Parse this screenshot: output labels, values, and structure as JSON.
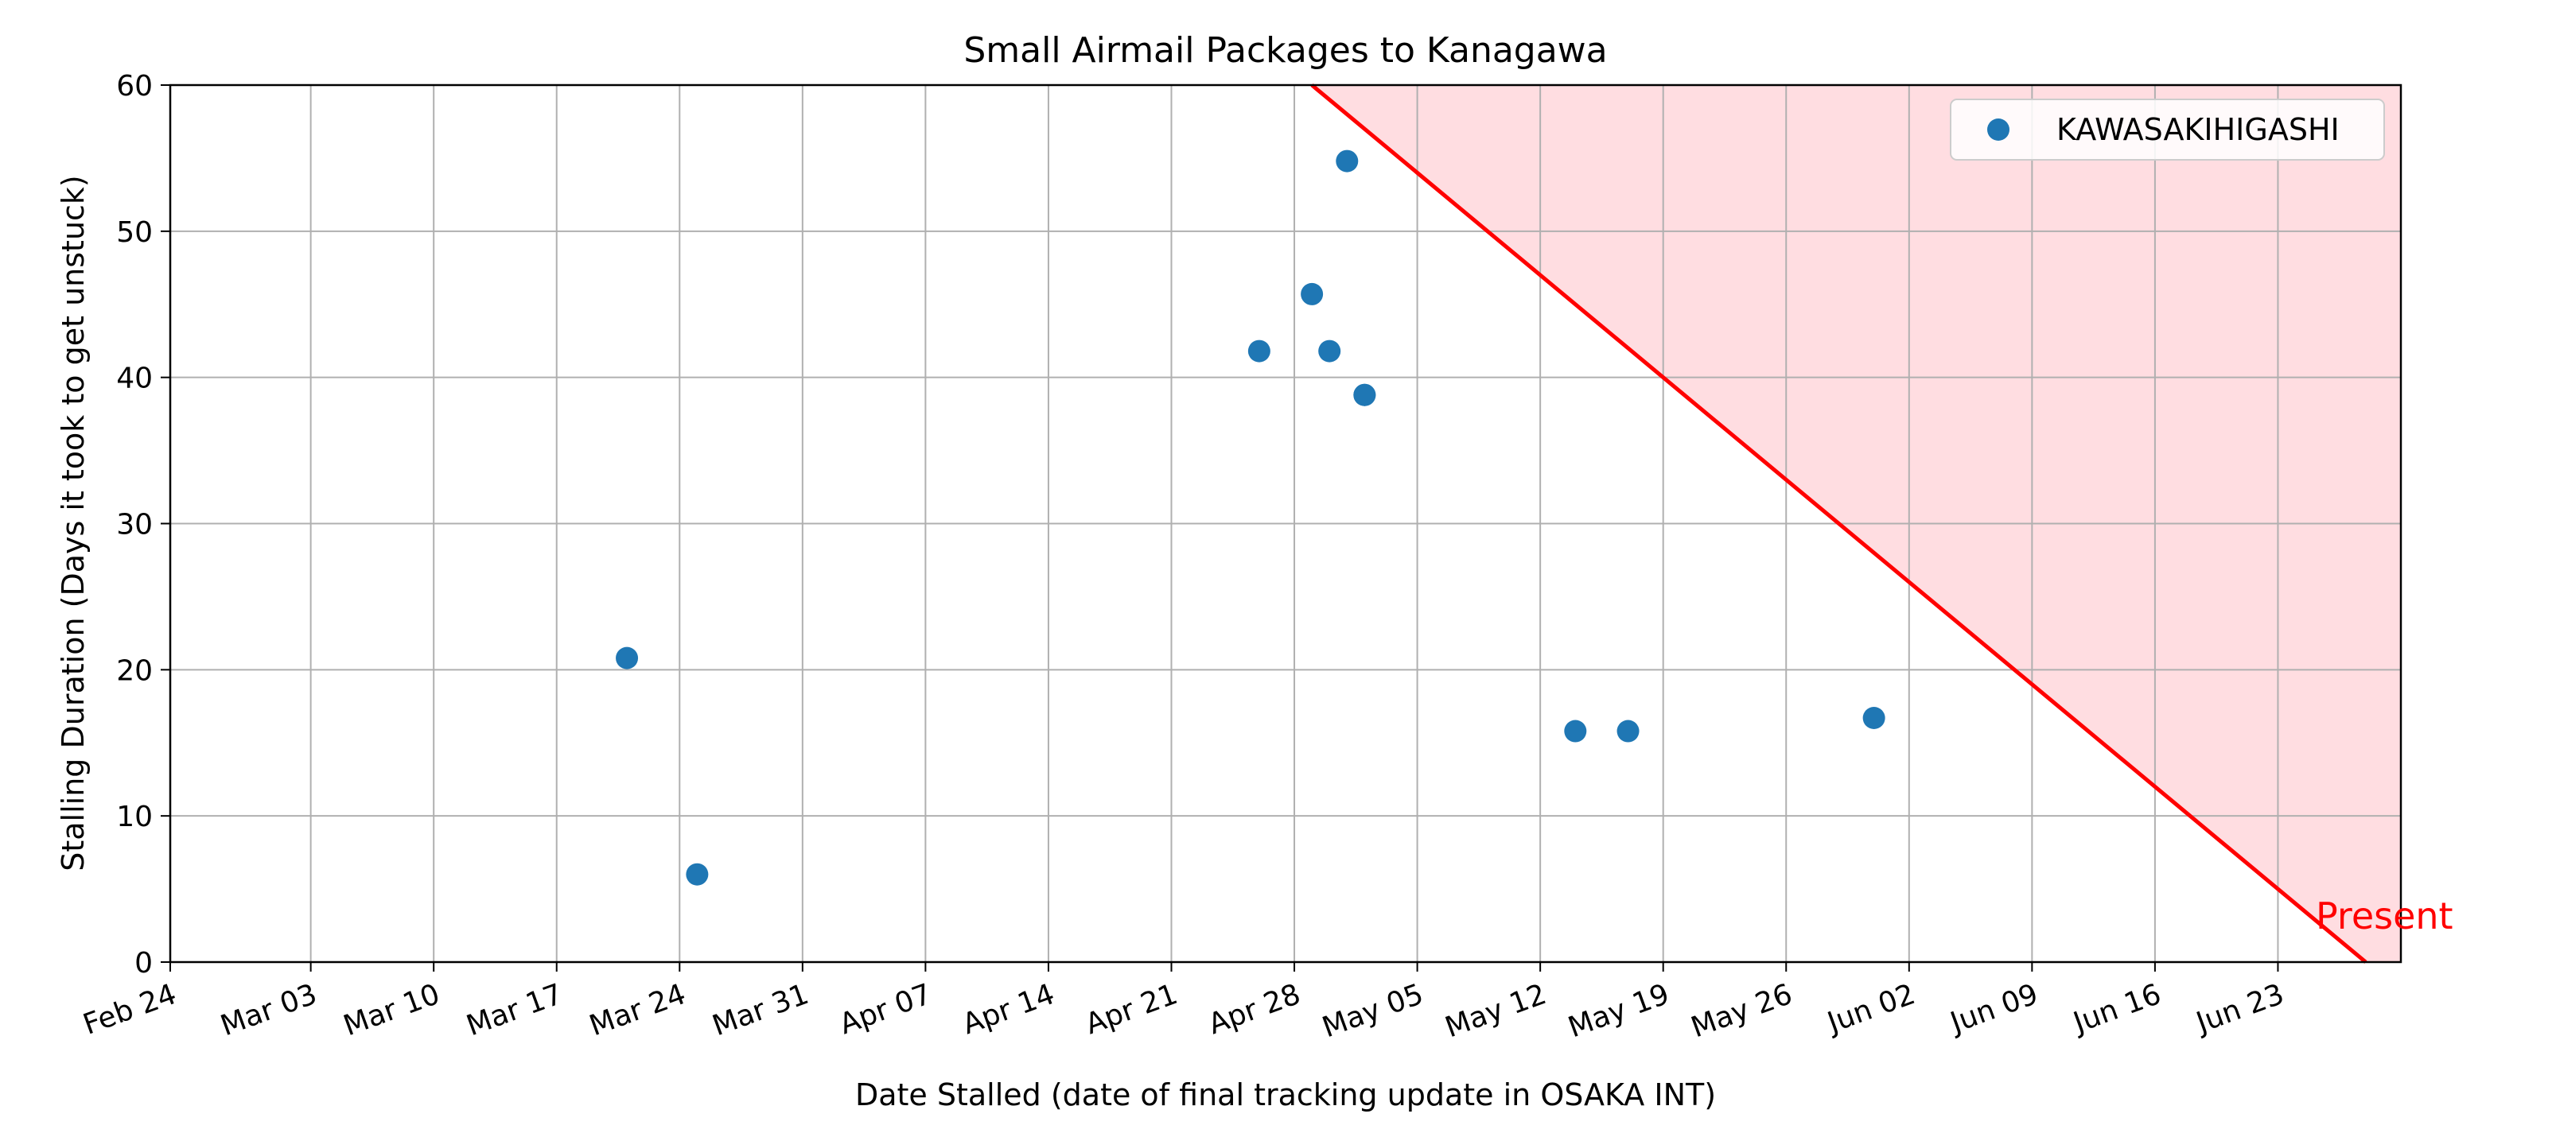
{
  "chart_data": {
    "type": "scatter",
    "title": "Small Airmail Packages to Kanagawa",
    "xlabel": "Date Stalled (date of final tracking update in OSAKA INT)",
    "ylabel": "Stalling Duration (Days it took to get unstuck)",
    "xlim": [
      "2024-02-24",
      "2024-06-30"
    ],
    "ylim": [
      0,
      60
    ],
    "x_ticks": [
      {
        "date": "2024-02-24",
        "label": "Feb 24"
      },
      {
        "date": "2024-03-03",
        "label": "Mar 03"
      },
      {
        "date": "2024-03-10",
        "label": "Mar 10"
      },
      {
        "date": "2024-03-17",
        "label": "Mar 17"
      },
      {
        "date": "2024-03-24",
        "label": "Mar 24"
      },
      {
        "date": "2024-03-31",
        "label": "Mar 31"
      },
      {
        "date": "2024-04-07",
        "label": "Apr 07"
      },
      {
        "date": "2024-04-14",
        "label": "Apr 14"
      },
      {
        "date": "2024-04-21",
        "label": "Apr 21"
      },
      {
        "date": "2024-04-28",
        "label": "Apr 28"
      },
      {
        "date": "2024-05-05",
        "label": "May 05"
      },
      {
        "date": "2024-05-12",
        "label": "May 12"
      },
      {
        "date": "2024-05-19",
        "label": "May 19"
      },
      {
        "date": "2024-05-26",
        "label": "May 26"
      },
      {
        "date": "2024-06-02",
        "label": "Jun 02"
      },
      {
        "date": "2024-06-09",
        "label": "Jun 09"
      },
      {
        "date": "2024-06-16",
        "label": "Jun 16"
      },
      {
        "date": "2024-06-23",
        "label": "Jun 23"
      }
    ],
    "y_ticks": [
      0,
      10,
      20,
      30,
      40,
      50,
      60
    ],
    "grid": true,
    "legend_position": "top-right",
    "series": [
      {
        "name": "KAWASAKIHIGASHI",
        "color": "#1f77b4",
        "points": [
          {
            "x": "2024-03-21",
            "y": 20.8
          },
          {
            "x": "2024-03-25",
            "y": 6
          },
          {
            "x": "2024-04-26",
            "y": 41.8
          },
          {
            "x": "2024-04-29",
            "y": 45.7
          },
          {
            "x": "2024-04-30",
            "y": 41.8
          },
          {
            "x": "2024-05-01",
            "y": 54.8
          },
          {
            "x": "2024-05-02",
            "y": 38.8
          },
          {
            "x": "2024-05-02",
            "y": 38.8
          },
          {
            "x": "2024-05-14",
            "y": 15.8
          },
          {
            "x": "2024-05-17",
            "y": 15.8
          },
          {
            "x": "2024-05-31",
            "y": 16.7
          }
        ]
      }
    ],
    "present_line": {
      "label": "Present",
      "color": "#ff0000",
      "shade_color": "#ffdde1",
      "present_date": "2024-06-28"
    }
  }
}
